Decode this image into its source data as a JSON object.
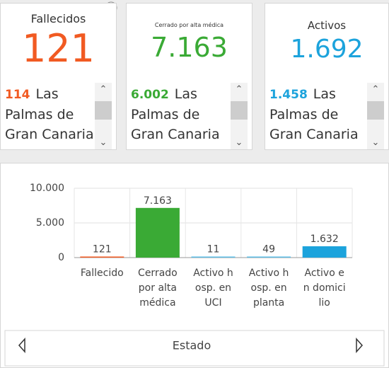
{
  "cards": [
    {
      "title": "Fallecidos",
      "value": "121",
      "color": "#f15a22",
      "item_value": "114",
      "item_text": "Las Palmas de Gran Canaria"
    },
    {
      "title": "Cerrado por alta médica",
      "value": "7.163",
      "color": "#3aaa35",
      "item_value": "6.002",
      "item_text": "Las Palmas de Gran Canaria"
    },
    {
      "title": "Activos",
      "value": "1.692",
      "color": "#1ca3dc",
      "item_value": "1.458",
      "item_text": "Las Palmas de Gran Canaria"
    }
  ],
  "chart_data": {
    "type": "bar",
    "x_label": "Estado",
    "categories": [
      "Fallecido",
      "Cerrado por alta médica",
      "Activo hosp. en UCI",
      "Activo hosp. en planta",
      "Activo en domicilio"
    ],
    "values": [
      121,
      7163,
      11,
      49,
      1632
    ],
    "value_labels": [
      "121",
      "7.163",
      "11",
      "49",
      "1.632"
    ],
    "colors": [
      "#f15a22",
      "#3aaa35",
      "#5bbde4",
      "#5bbde4",
      "#1ca3dc"
    ],
    "ylim": [
      0,
      10000
    ],
    "yticks": [
      0,
      {
        "value": 5000,
        "label": "5.000"
      },
      {
        "value": 10000,
        "label": "10.000"
      }
    ],
    "grid": true
  }
}
